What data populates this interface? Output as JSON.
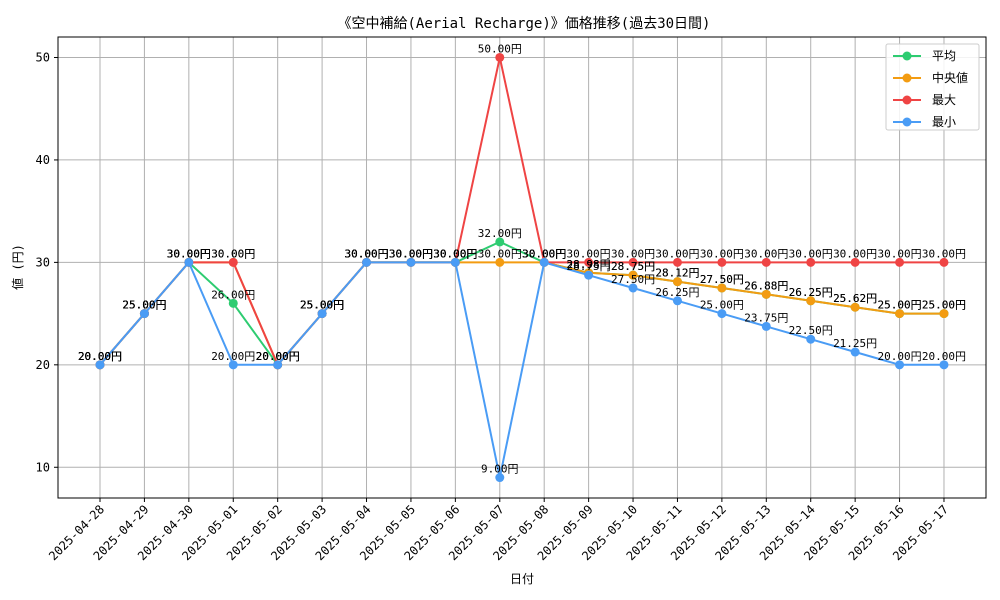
{
  "chart_data": {
    "type": "line",
    "title": "《空中補給(Aerial Recharge)》価格推移(過去30日間)",
    "xlabel": "日付",
    "ylabel": "値 (円)",
    "ylim": [
      7,
      52
    ],
    "yticks": [
      "10",
      "20",
      "30",
      "40",
      "50"
    ],
    "grid": true,
    "legend_position": "top-right",
    "value_suffix": "円",
    "categories": [
      "2025-04-28",
      "2025-04-29",
      "2025-04-30",
      "2025-05-01",
      "2025-05-02",
      "2025-05-03",
      "2025-05-04",
      "2025-05-05",
      "2025-05-06",
      "2025-05-07",
      "2025-05-08",
      "2025-05-09",
      "2025-05-10",
      "2025-05-11",
      "2025-05-12",
      "2025-05-13",
      "2025-05-14",
      "2025-05-15",
      "2025-05-16",
      "2025-05-17"
    ],
    "series": [
      {
        "name": "平均",
        "color": "#2ecc71",
        "values": [
          20,
          25,
          30,
          26,
          20,
          25,
          30,
          30,
          30,
          32,
          30,
          28.98,
          28.75,
          28.12,
          27.5,
          26.88,
          26.25,
          25.62,
          25,
          25
        ]
      },
      {
        "name": "中央値",
        "color": "#f39c12",
        "values": [
          20,
          25,
          30,
          30,
          20,
          25,
          30,
          30,
          30,
          30,
          30,
          28.98,
          28.75,
          28.12,
          27.5,
          26.88,
          26.25,
          25.62,
          25,
          25
        ]
      },
      {
        "name": "最大",
        "color": "#ef4444",
        "values": [
          20,
          25,
          30,
          30,
          20,
          25,
          30,
          30,
          30,
          50,
          30,
          30,
          30,
          30,
          30,
          30,
          30,
          30,
          30,
          30
        ]
      },
      {
        "name": "最小",
        "color": "#4a9cf5",
        "values": [
          20,
          25,
          30,
          20,
          20,
          25,
          30,
          30,
          30,
          9,
          30,
          28.75,
          27.5,
          26.25,
          25,
          23.75,
          22.5,
          21.25,
          20,
          20
        ]
      }
    ]
  }
}
